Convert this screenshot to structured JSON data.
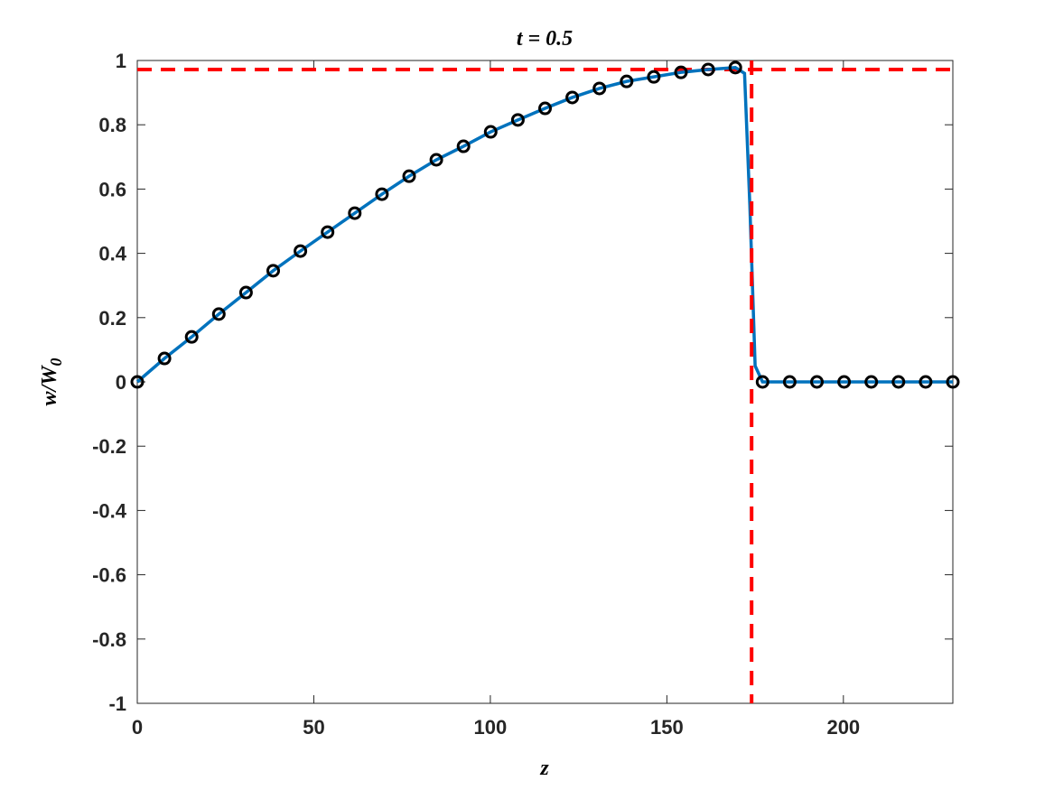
{
  "chart_data": {
    "type": "line",
    "title": "t = 0.5",
    "xlabel": "z",
    "ylabel": {
      "text": "w/W",
      "subscript": "0"
    },
    "xlim": [
      0,
      231
    ],
    "ylim": [
      -1,
      1
    ],
    "xticks": [
      0,
      50,
      100,
      150,
      200
    ],
    "yticks": [
      -1,
      -0.8,
      -0.6,
      -0.4,
      -0.2,
      0,
      0.2,
      0.4,
      0.6,
      0.8,
      1
    ],
    "series": [
      {
        "style": "line",
        "color": "#0072bd",
        "x": [
          0,
          7.7,
          15.4,
          23.1,
          30.8,
          38.5,
          46.2,
          53.9,
          61.6,
          69.3,
          77,
          84.7,
          92.4,
          100.1,
          107.8,
          115.5,
          123.2,
          130.9,
          138.6,
          146.3,
          154,
          161.7,
          169.4,
          172,
          173.5,
          175,
          177.1,
          184.8,
          192.5,
          200.2,
          207.9,
          215.6,
          223.3,
          231
        ],
        "values": [
          0,
          0.073,
          0.14,
          0.211,
          0.278,
          0.346,
          0.407,
          0.466,
          0.525,
          0.584,
          0.64,
          0.691,
          0.733,
          0.778,
          0.815,
          0.851,
          0.885,
          0.913,
          0.935,
          0.949,
          0.963,
          0.972,
          0.978,
          0.96,
          0.55,
          0.05,
          0,
          0,
          0,
          0,
          0,
          0,
          0,
          0
        ]
      },
      {
        "style": "markers",
        "color": "#000000",
        "x": [
          0,
          7.7,
          15.4,
          23.1,
          30.8,
          38.5,
          46.2,
          53.9,
          61.6,
          69.3,
          77,
          84.7,
          92.4,
          100.1,
          107.8,
          115.5,
          123.2,
          130.9,
          138.6,
          146.3,
          154,
          161.7,
          169.4,
          177.1,
          184.8,
          192.5,
          200.2,
          207.9,
          215.6,
          223.3,
          231
        ],
        "values": [
          0,
          0.073,
          0.14,
          0.211,
          0.278,
          0.346,
          0.407,
          0.466,
          0.525,
          0.584,
          0.64,
          0.691,
          0.733,
          0.778,
          0.815,
          0.851,
          0.885,
          0.913,
          0.935,
          0.949,
          0.963,
          0.972,
          0.978,
          0,
          0,
          0,
          0,
          0,
          0,
          0,
          0
        ]
      }
    ],
    "reference_lines": {
      "y": 0.972,
      "x": 174,
      "color": "#ff0000"
    }
  }
}
